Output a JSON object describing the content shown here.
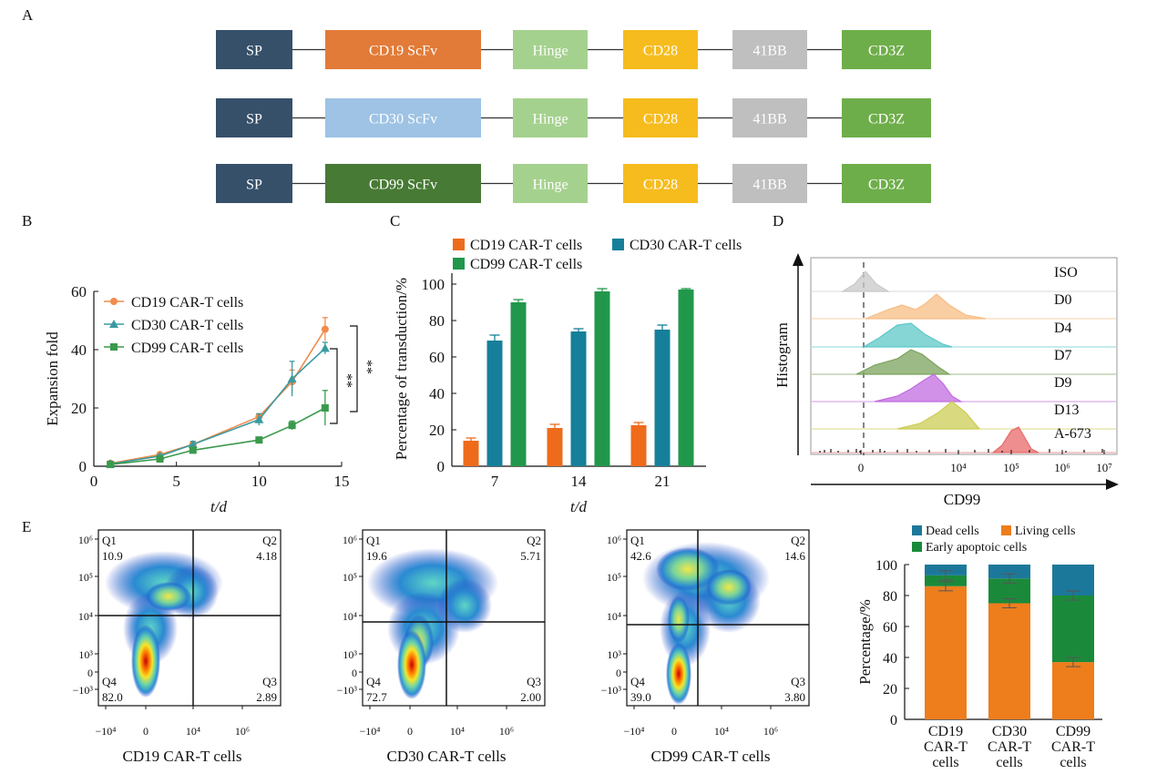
{
  "figure": {
    "panel_labels": {
      "A": "A",
      "B": "B",
      "C": "C",
      "D": "D",
      "E": "E"
    },
    "constructs": [
      {
        "segments": [
          {
            "label": "SP",
            "color": "#36506a"
          },
          {
            "label": "CD19 ScFv",
            "color": "#e27b38"
          },
          {
            "label": "Hinge",
            "color": "#a5d18e"
          },
          {
            "label": "CD28",
            "color": "#f6bc1e"
          },
          {
            "label": "41BB",
            "color": "#bfbfbf"
          },
          {
            "label": "CD3Z",
            "color": "#6eae4a"
          }
        ]
      },
      {
        "segments": [
          {
            "label": "SP",
            "color": "#36506a"
          },
          {
            "label": "CD30 ScFv",
            "color": "#9ec3e4"
          },
          {
            "label": "Hinge",
            "color": "#a5d18e"
          },
          {
            "label": "CD28",
            "color": "#f6bc1e"
          },
          {
            "label": "41BB",
            "color": "#bfbfbf"
          },
          {
            "label": "CD3Z",
            "color": "#6eae4a"
          }
        ]
      },
      {
        "segments": [
          {
            "label": "SP",
            "color": "#36506a"
          },
          {
            "label": "CD99 ScFv",
            "color": "#477a34"
          },
          {
            "label": "Hinge",
            "color": "#a5d18e"
          },
          {
            "label": "CD28",
            "color": "#f6bc1e"
          },
          {
            "label": "41BB",
            "color": "#bfbfbf"
          },
          {
            "label": "CD3Z",
            "color": "#6eae4a"
          }
        ]
      }
    ]
  },
  "chart_data": [
    {
      "panel": "B",
      "type": "line",
      "xlabel": "t/d",
      "ylabel": "Expansion fold",
      "xlim": [
        0,
        15
      ],
      "ylim": [
        0,
        60
      ],
      "xticks": [
        "0",
        "5",
        "10",
        "15"
      ],
      "yticks": [
        "0",
        "20",
        "40",
        "60"
      ],
      "x": [
        1,
        4,
        6,
        10,
        12,
        14
      ],
      "series": [
        {
          "name": "CD19 CAR-T cells",
          "color": "#f08c4c",
          "marker": "circle",
          "values": [
            1,
            4,
            7.5,
            17,
            29,
            47
          ],
          "errors": [
            0.3,
            0.6,
            1,
            1,
            4,
            4
          ]
        },
        {
          "name": "CD30 CAR-T cells",
          "color": "#3a9aa0",
          "marker": "triangle",
          "values": [
            0.8,
            3.5,
            7.5,
            16,
            30,
            40.5
          ],
          "errors": [
            0.3,
            0.5,
            1,
            2,
            6,
            2
          ]
        },
        {
          "name": "CD99 CAR-T cells",
          "color": "#3a9a4c",
          "marker": "square",
          "values": [
            0.6,
            2.5,
            5.5,
            9,
            14,
            20
          ],
          "errors": [
            0.2,
            0.5,
            1,
            1,
            1.5,
            6
          ]
        }
      ],
      "annotations": [
        "**",
        "**"
      ],
      "legend": "top-left"
    },
    {
      "panel": "C",
      "type": "bar",
      "xlabel": "t/d",
      "ylabel": "Percentage of transduction/%",
      "ylim": [
        0,
        100
      ],
      "yticks": [
        "0",
        "20",
        "40",
        "60",
        "80",
        "100"
      ],
      "categories": [
        "7",
        "14",
        "21"
      ],
      "series": [
        {
          "name": "CD19 CAR-T cells",
          "color": "#ee6b1c",
          "values": [
            14,
            21,
            22.5
          ],
          "errors": [
            1.5,
            2,
            1.5
          ]
        },
        {
          "name": "CD30 CAR-T cells",
          "color": "#167f9a",
          "values": [
            69,
            74,
            75
          ],
          "errors": [
            3,
            1.5,
            2.5
          ]
        },
        {
          "name": "CD99 CAR-T cells",
          "color": "#21974b",
          "values": [
            90,
            96,
            97
          ],
          "errors": [
            1.5,
            1.5,
            0.5
          ]
        }
      ],
      "legend": "top"
    },
    {
      "panel": "D",
      "type": "histogram",
      "xlabel": "CD99",
      "ylabel": "Histogram",
      "xticks": [
        "0",
        "10⁴",
        "10⁵",
        "10⁶",
        "10⁷"
      ],
      "tracks": [
        {
          "name": "ISO",
          "color": "#c8c8c8"
        },
        {
          "name": "D0",
          "color": "#f7bd84"
        },
        {
          "name": "D4",
          "color": "#5ec8c8"
        },
        {
          "name": "D7",
          "color": "#7ba35c"
        },
        {
          "name": "D9",
          "color": "#c16ce0"
        },
        {
          "name": "D13",
          "color": "#cccc55"
        },
        {
          "name": "A-673",
          "color": "#e86868"
        }
      ]
    },
    {
      "panel": "E-flow",
      "type": "scatter",
      "xticks": [
        "−10⁴",
        "0",
        "10⁴",
        "10⁶"
      ],
      "yticks": [
        "10⁶",
        "10⁵",
        "10⁴",
        "10³",
        "0",
        "−10³"
      ],
      "plots": [
        {
          "title": "CD19 CAR-T cells",
          "Q1": "10.9",
          "Q2": "4.18",
          "Q3": "2.89",
          "Q4": "82.0"
        },
        {
          "title": "CD30 CAR-T cells",
          "Q1": "19.6",
          "Q2": "5.71",
          "Q3": "2.00",
          "Q4": "72.7"
        },
        {
          "title": "CD99 CAR-T cells",
          "Q1": "42.6",
          "Q2": "14.6",
          "Q3": "3.80",
          "Q4": "39.0"
        }
      ],
      "quadrant_names": [
        "Q1",
        "Q2",
        "Q3",
        "Q4"
      ]
    },
    {
      "panel": "E-bar",
      "type": "bar",
      "stacked": true,
      "ylabel": "Percentage/%",
      "ylim": [
        0,
        100
      ],
      "yticks": [
        "0",
        "20",
        "40",
        "60",
        "80",
        "100"
      ],
      "categories": [
        "CD19 CAR-T cells",
        "CD30 CAR-T cells",
        "CD99 CAR-T cells"
      ],
      "series": [
        {
          "name": "Living cells",
          "color": "#ee7d1c",
          "values": [
            86,
            75,
            37
          ]
        },
        {
          "name": "Early apoptoic cells",
          "color": "#1a8a3a",
          "values": [
            7,
            16,
            43
          ]
        },
        {
          "name": "Dead cells",
          "color": "#1c789a",
          "values": [
            7,
            9,
            20
          ]
        }
      ],
      "legend": "top"
    }
  ]
}
